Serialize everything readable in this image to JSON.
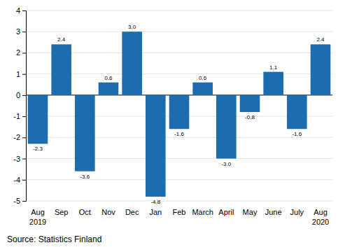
{
  "chart_data": {
    "type": "bar",
    "categories": [
      "Aug\n2019",
      "Sep",
      "Oct",
      "Nov",
      "Dec",
      "Jan",
      "Feb",
      "March",
      "April",
      "May",
      "June",
      "July",
      "Aug\n2020"
    ],
    "values": [
      -2.3,
      2.4,
      -3.6,
      0.6,
      3.0,
      -4.8,
      -1.6,
      0.6,
      -3.0,
      -0.8,
      1.1,
      -1.6,
      2.4
    ],
    "value_labels": [
      "-2.3",
      "2.4",
      "-3.6",
      "0.6",
      "3.0",
      "-4.8",
      "-1.6",
      "0.6",
      "-3.0",
      "-0.8",
      "1.1",
      "-1.6",
      "2.4"
    ],
    "color": "#1b6db0",
    "ylim": [
      -5,
      4
    ],
    "yticks": [
      -5,
      -4,
      -3,
      -2,
      -1,
      0,
      1,
      2,
      3,
      4
    ],
    "grid": true,
    "data_labels": true,
    "source": "Source: Statistics Finland"
  }
}
